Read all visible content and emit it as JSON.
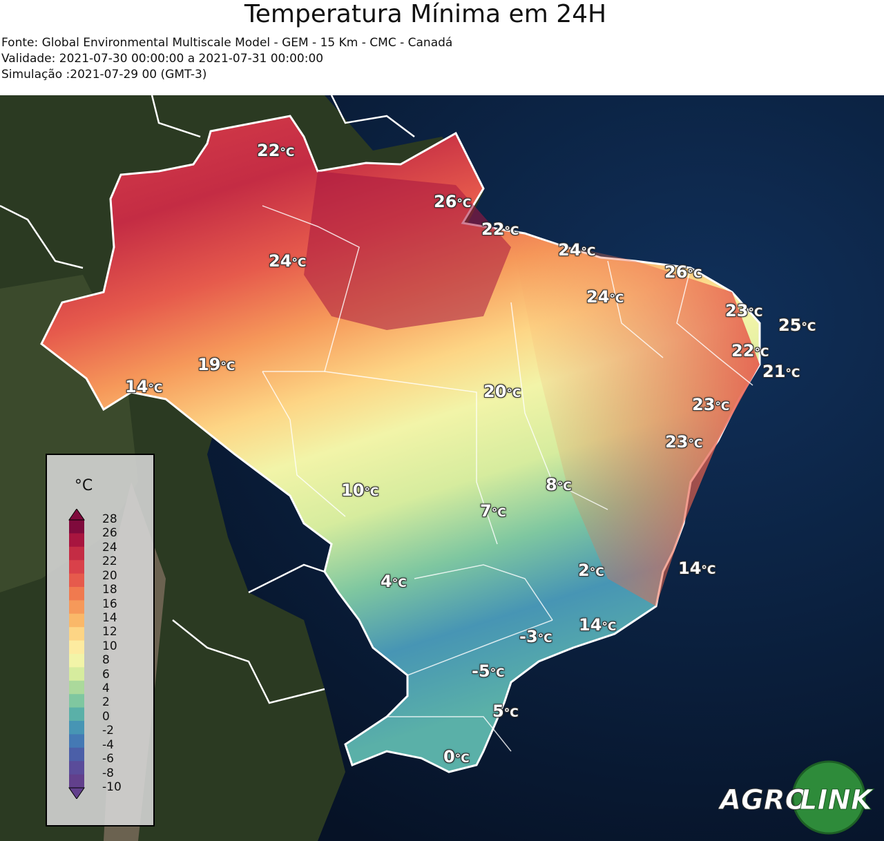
{
  "header": {
    "title": "Temperatura Mínima em 24H",
    "source": "Fonte: Global Environmental Multiscale Model - GEM - 15 Km - CMC - Canadá",
    "validity": "Validade: 2021-07-30 00:00:00 a 2021-07-31 00:00:00",
    "simulation": "Simulação :2021-07-29 00 (GMT-3)"
  },
  "labels": [
    {
      "value": "22",
      "unit": "°C"
    },
    {
      "value": "26",
      "unit": "°C"
    },
    {
      "value": "22",
      "unit": "°C"
    },
    {
      "value": "24",
      "unit": "°C"
    },
    {
      "value": "24",
      "unit": "°C"
    },
    {
      "value": "26",
      "unit": "°C"
    },
    {
      "value": "24",
      "unit": "°C"
    },
    {
      "value": "23",
      "unit": "°C"
    },
    {
      "value": "25",
      "unit": "°C"
    },
    {
      "value": "22",
      "unit": "°C"
    },
    {
      "value": "21",
      "unit": "°C"
    },
    {
      "value": "19",
      "unit": "°C"
    },
    {
      "value": "14",
      "unit": "°C"
    },
    {
      "value": "20",
      "unit": "°C"
    },
    {
      "value": "23",
      "unit": "°C"
    },
    {
      "value": "23",
      "unit": "°C"
    },
    {
      "value": "10",
      "unit": "°C"
    },
    {
      "value": "8",
      "unit": "°C"
    },
    {
      "value": "7",
      "unit": "°C"
    },
    {
      "value": "4",
      "unit": "°C"
    },
    {
      "value": "2",
      "unit": "°C"
    },
    {
      "value": "14",
      "unit": "°C"
    },
    {
      "value": "14",
      "unit": "°C"
    },
    {
      "value": "-3",
      "unit": "°C"
    },
    {
      "value": "-5",
      "unit": "°C"
    },
    {
      "value": "5",
      "unit": "°C"
    },
    {
      "value": "0",
      "unit": "°C"
    }
  ],
  "colorbar": {
    "unit": "°C",
    "ticks": [
      "28",
      "26",
      "24",
      "22",
      "20",
      "18",
      "16",
      "14",
      "12",
      "10",
      "8",
      "6",
      "4",
      "2",
      "0",
      "-2",
      "-4",
      "-6",
      "-8",
      "-10"
    ],
    "colors": [
      "#7f0a3c",
      "#a8153f",
      "#c42c44",
      "#d9414a",
      "#e65a4c",
      "#f07a4f",
      "#f6995a",
      "#fab869",
      "#fdd585",
      "#fdeba0",
      "#f2f4a8",
      "#d6ec9e",
      "#abd99b",
      "#7fc7a0",
      "#5ab0a8",
      "#4795b4",
      "#4479b4",
      "#4b5fa8",
      "#5a4c9a",
      "#62408c"
    ]
  },
  "logo": {
    "left_text": "AGRO",
    "right_text": "LINK"
  }
}
